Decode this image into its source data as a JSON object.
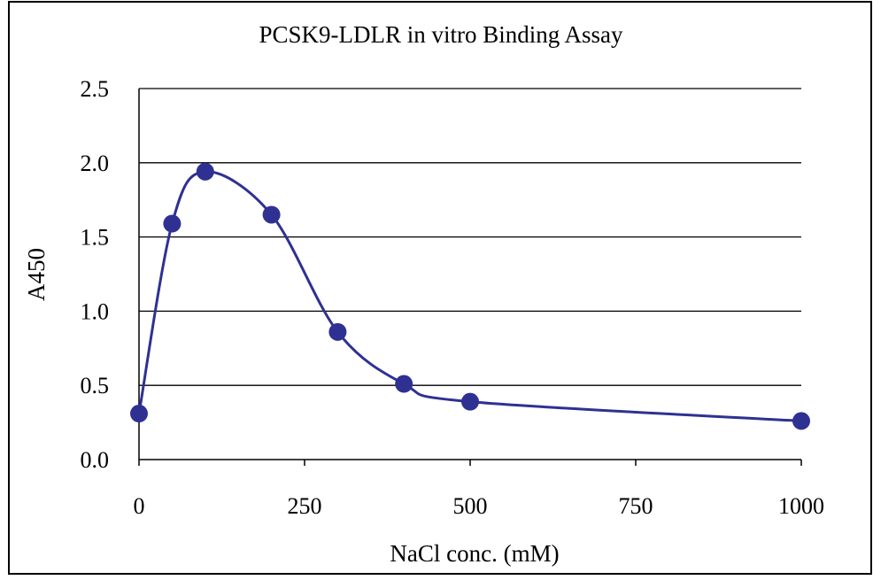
{
  "chart_data": {
    "type": "line",
    "title": "PCSK9-LDLR in vitro Binding Assay",
    "xlabel": "NaCl conc. (mM)",
    "ylabel": "A450",
    "xlim": [
      0,
      1000
    ],
    "ylim": [
      0,
      2.5
    ],
    "x_ticks": [
      "0",
      "250",
      "500",
      "750",
      "1000"
    ],
    "y_ticks": [
      "0.0",
      "0.5",
      "1.0",
      "1.5",
      "2.0",
      "2.5"
    ],
    "grid": "horizontal",
    "legend": "none",
    "smooth": true,
    "series": [
      {
        "x": [
          0,
          50,
          100,
          200,
          300,
          400,
          500,
          1000
        ],
        "y": [
          0.31,
          1.59,
          1.94,
          1.65,
          0.86,
          0.51,
          0.39,
          0.26
        ]
      }
    ],
    "colors": {
      "series": "#2e3192",
      "grid": "#000000",
      "frame": "#000000"
    }
  }
}
